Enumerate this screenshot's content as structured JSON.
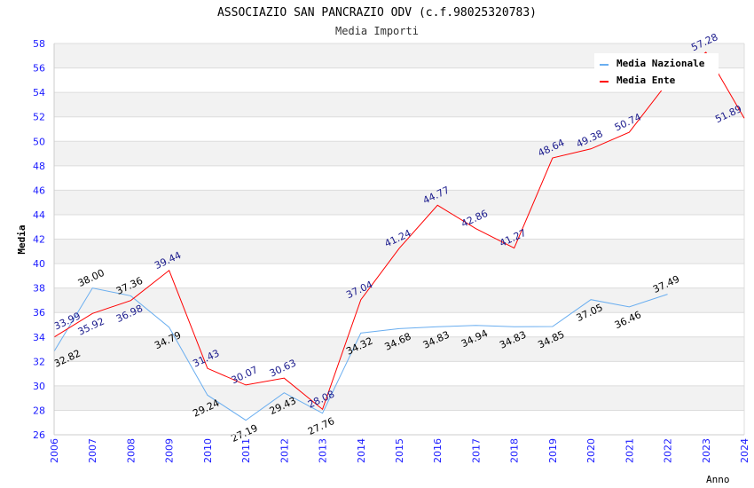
{
  "chart_data": {
    "type": "line",
    "title": "ASSOCIAZIO SAN PANCRAZIO ODV (c.f.98025320783)",
    "subtitle": "Media Importi",
    "xlabel": "Anno",
    "ylabel": "Media",
    "ylim": [
      26,
      58
    ],
    "yticks": [
      "26",
      "28",
      "30",
      "32",
      "34",
      "36",
      "38",
      "40",
      "42",
      "44",
      "46",
      "48",
      "50",
      "52",
      "54",
      "56",
      "58"
    ],
    "x": [
      "2006",
      "2007",
      "2008",
      "2009",
      "2010",
      "2011",
      "2012",
      "2013",
      "2014",
      "2015",
      "2016",
      "2017",
      "2018",
      "2019",
      "2020",
      "2021",
      "2022",
      "2023",
      "2024"
    ],
    "legend_position": "top-right",
    "series": [
      {
        "name": "Media Nazionale",
        "color": "#6aaef0",
        "label_color": "#000000",
        "values": [
          32.82,
          38.0,
          37.36,
          34.79,
          29.24,
          27.19,
          29.43,
          27.76,
          34.32,
          34.68,
          34.83,
          34.94,
          34.83,
          34.85,
          37.05,
          36.46,
          37.49,
          null,
          null
        ],
        "labels": [
          "32.82",
          "38.00",
          "37.36",
          "34.79",
          "29.24",
          "27.19",
          "29.43",
          "27.76",
          "34.32",
          "34.68",
          "34.83",
          "34.94",
          "34.83",
          "34.85",
          "37.05",
          "36.46",
          "37.49",
          null,
          null
        ]
      },
      {
        "name": "Media Ente",
        "color": "#ff0000",
        "label_color": "#1a1a8c",
        "values": [
          33.99,
          35.92,
          36.98,
          39.44,
          31.43,
          30.07,
          30.63,
          28.08,
          37.04,
          41.24,
          44.77,
          42.86,
          41.27,
          48.64,
          49.38,
          50.74,
          54.8,
          57.28,
          51.89
        ],
        "labels": [
          "33.99",
          "35.92",
          "36.98",
          "39.44",
          "31.43",
          "30.07",
          "30.63",
          "28.08",
          "37.04",
          "41.24",
          "44.77",
          "42.86",
          "41.27",
          "48.64",
          "49.38",
          "50.74",
          null,
          "57.28",
          "51.89"
        ]
      }
    ]
  }
}
